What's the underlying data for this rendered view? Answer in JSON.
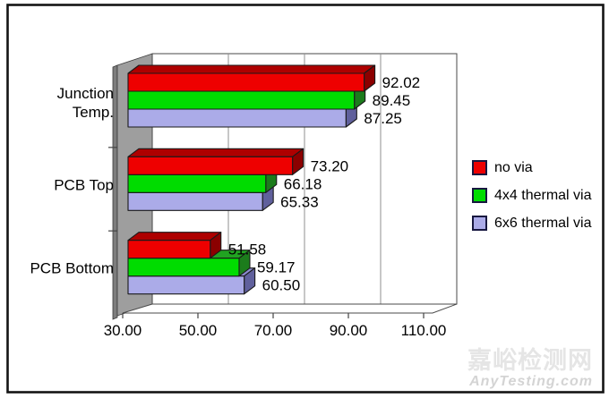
{
  "chart_data": {
    "type": "bar",
    "orientation": "horizontal",
    "effect": "3d",
    "title": "",
    "categories": [
      "Junction Temp.",
      "PCB Top",
      "PCB Bottom"
    ],
    "category_lines": [
      [
        "Junction",
        "Temp."
      ],
      [
        "PCB Top"
      ],
      [
        "PCB Bottom"
      ]
    ],
    "series": [
      {
        "name": "no via",
        "front_color": "#ee0000",
        "top_color": "#ae0000",
        "side_color": "#8b0000",
        "values": [
          92.02,
          73.2,
          51.58
        ]
      },
      {
        "name": "4x4 thermal via",
        "front_color": "#00dc00",
        "top_color": "#21a321",
        "side_color": "#1c7c1c",
        "values": [
          89.45,
          66.18,
          59.17
        ]
      },
      {
        "name": "6x6 thermal via",
        "front_color": "#ababe8",
        "top_color": "#8a8ace",
        "side_color": "#60609c",
        "values": [
          87.25,
          65.33,
          60.5
        ]
      }
    ],
    "value_labels_shown": true,
    "value_label_decimals": 2,
    "x_axis": {
      "min": 30,
      "max": 110,
      "tick_interval": 20,
      "tick_labels": [
        "30.00",
        "50.00",
        "70.00",
        "90.00",
        "110.00"
      ]
    },
    "legend": {
      "position": "right",
      "entries": [
        "no via",
        "4x4 thermal via",
        "6x6 thermal via"
      ]
    },
    "grid": true
  },
  "watermark": {
    "line1": "嘉峪检测网",
    "line2": "AnyTesting.com"
  },
  "colors": {
    "wall": "#9e9e9e",
    "wall_edge": "#7d7d7d",
    "gridline": "#8f8f8f",
    "bar_outline": "#1a1a1a",
    "frame": "#141414",
    "plot_border": "#4a4a4a"
  }
}
